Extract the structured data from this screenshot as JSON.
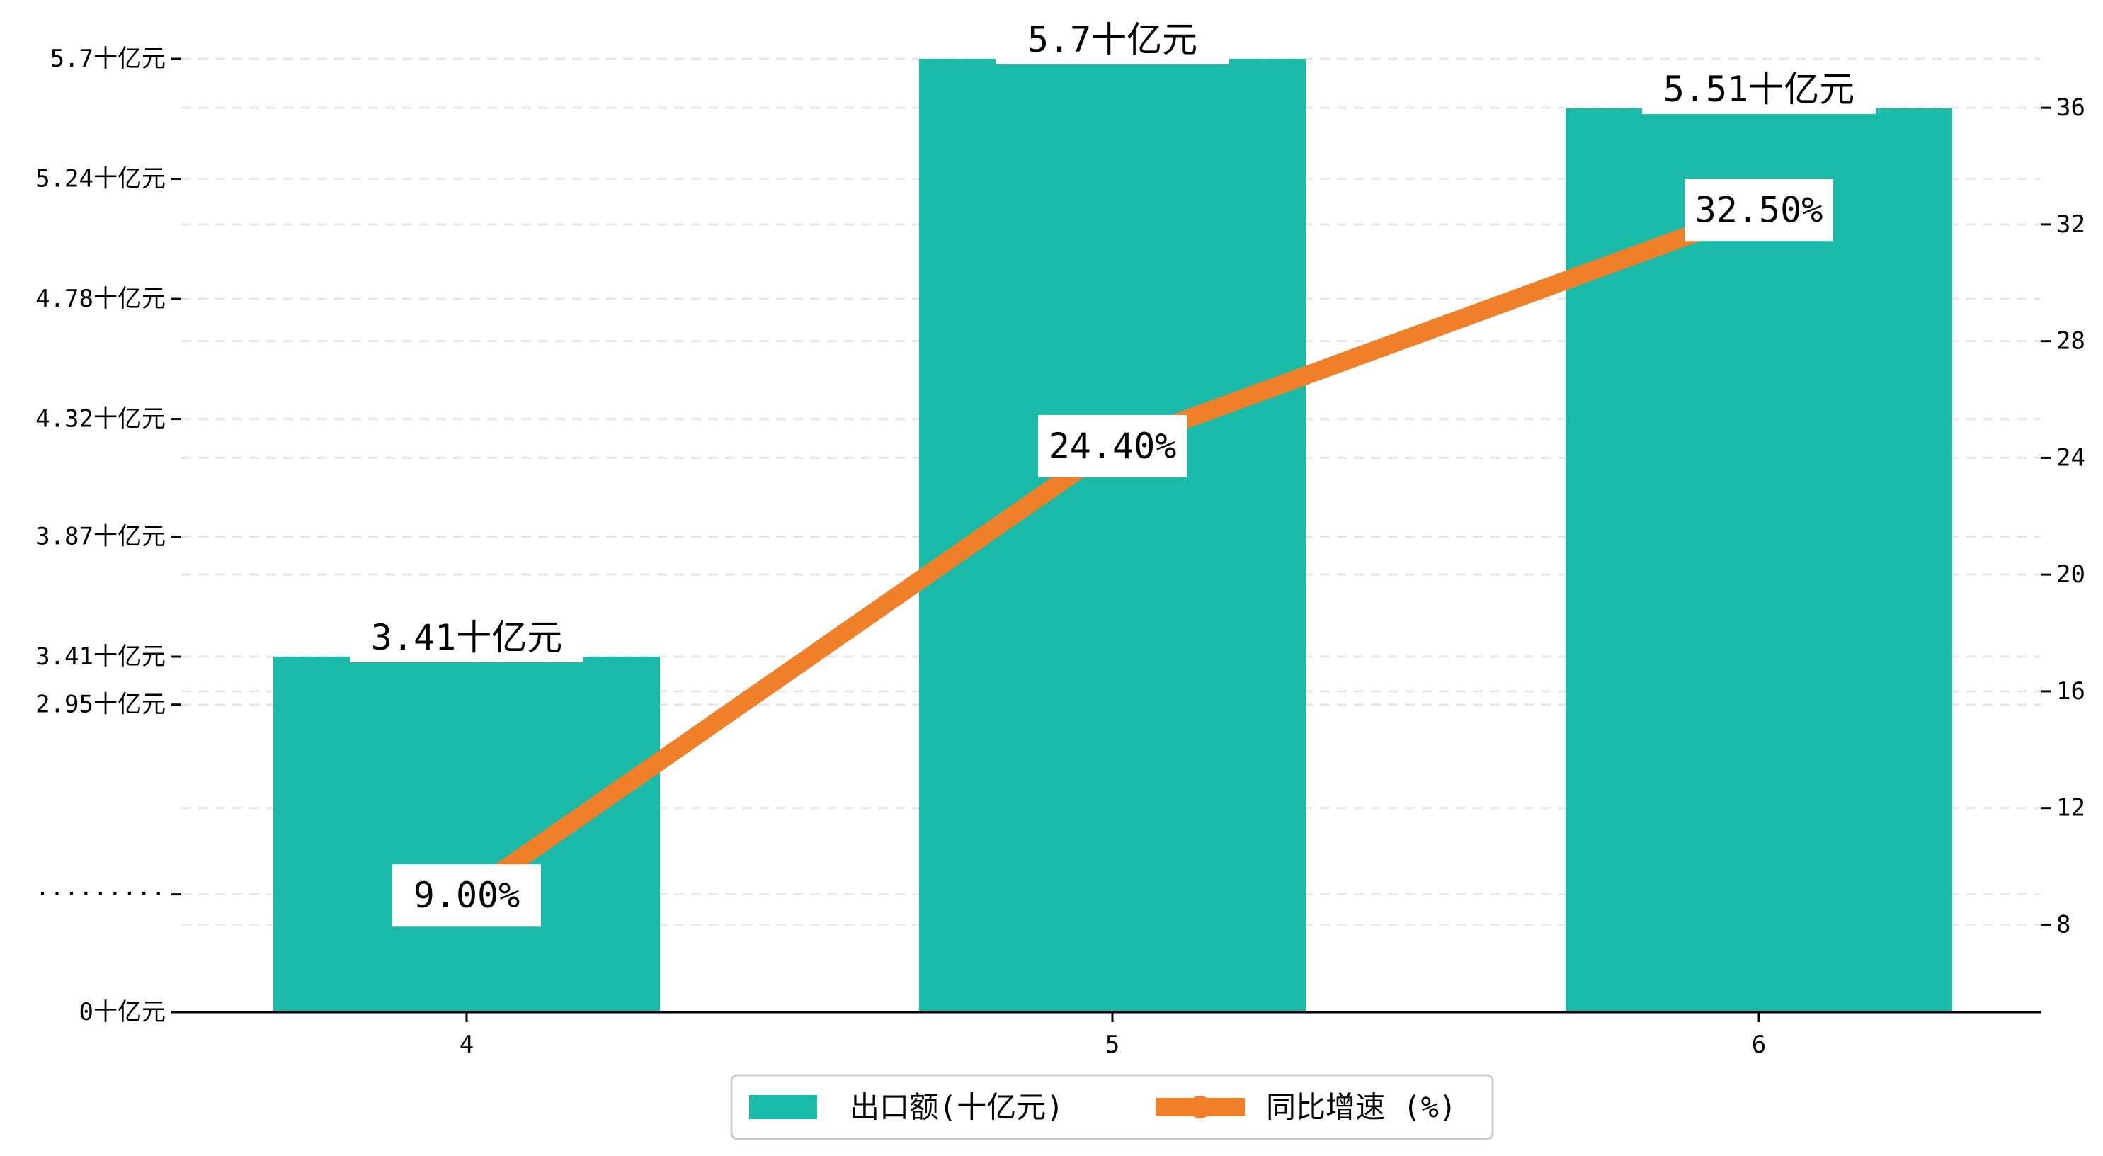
{
  "chart_data": {
    "type": "bar",
    "categories": [
      "4",
      "5",
      "6"
    ],
    "series": [
      {
        "name": "出口额(十亿元)",
        "type": "bar",
        "axis": "left",
        "values": [
          3.41,
          5.7,
          5.51
        ],
        "labels": [
          "3.41十亿元",
          "5.7十亿元",
          "5.51十亿元"
        ],
        "color": "#1abaa8"
      },
      {
        "name": "同比增速 (%)",
        "type": "line",
        "axis": "right",
        "values": [
          9.0,
          24.4,
          32.5
        ],
        "labels": [
          "9.00%",
          "24.40%",
          "32.50%"
        ],
        "color": "#f07f2a"
      }
    ],
    "left_axis": {
      "ticks": [
        0,
        1.13,
        2.95,
        3.41,
        3.87,
        4.32,
        4.78,
        5.24,
        5.7
      ],
      "tick_labels": [
        "0十亿元",
        "·········",
        "2.95十亿元",
        "3.41十亿元",
        "3.87十亿元",
        "4.32十亿元",
        "4.78十亿元",
        "5.24十亿元",
        "5.7十亿元"
      ],
      "note": "broken axis: 0 to 3.41 compressed in lower segment"
    },
    "right_axis": {
      "ticks": [
        8,
        12,
        16,
        20,
        24,
        28,
        32,
        36
      ],
      "tick_labels": [
        "8",
        "12",
        "16",
        "20",
        "24",
        "28",
        "32",
        "36"
      ],
      "ylim": [
        5,
        37.8
      ]
    },
    "grid": "horizontal dashed",
    "legend": "bottom-center"
  }
}
